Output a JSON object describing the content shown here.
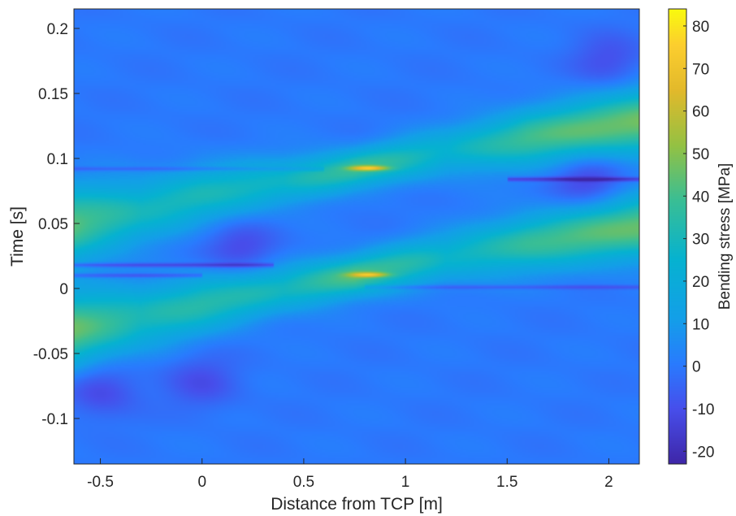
{
  "chart_data": {
    "type": "heatmap",
    "title": "",
    "xlabel": "Distance from TCP [m]",
    "ylabel": "Time [s]",
    "colorbar_label": "Bending stress [MPa]",
    "colormap": "parula",
    "grid": false,
    "xlim": [
      -0.63,
      2.15
    ],
    "ylim": [
      -0.135,
      0.215
    ],
    "clim": [
      -23,
      84
    ],
    "x_ticks": [
      -0.5,
      0,
      0.5,
      1,
      1.5,
      2
    ],
    "x_tick_labels": [
      "-0.5",
      "0",
      "0.5",
      "1",
      "1.5",
      "2"
    ],
    "y_ticks": [
      -0.1,
      -0.05,
      0,
      0.05,
      0.1,
      0.15,
      0.2
    ],
    "y_tick_labels": [
      "-0.1",
      "-0.05",
      "0",
      "0.05",
      "0.1",
      "0.15",
      "0.2"
    ],
    "colorbar_ticks": [
      -20,
      -10,
      0,
      10,
      20,
      30,
      40,
      50,
      60,
      70,
      80
    ],
    "colorbar_tick_labels": [
      "-20",
      "-10",
      "0",
      "10",
      "20",
      "30",
      "40",
      "50",
      "60",
      "70",
      "80"
    ],
    "background_value": 0,
    "bands": [
      {
        "name": "upper wave",
        "points": [
          {
            "x": -0.63,
            "t": 0.049,
            "peak": 44,
            "halfwidth": 0.028
          },
          {
            "x": -0.3,
            "t": 0.06,
            "peak": 30,
            "halfwidth": 0.024
          },
          {
            "x": 0.0,
            "t": 0.072,
            "peak": 30,
            "halfwidth": 0.022
          },
          {
            "x": 0.4,
            "t": 0.082,
            "peak": 28,
            "halfwidth": 0.018
          },
          {
            "x": 0.75,
            "t": 0.092,
            "peak": 40,
            "halfwidth": 0.014
          },
          {
            "x": 1.2,
            "t": 0.105,
            "peak": 25,
            "halfwidth": 0.018
          },
          {
            "x": 1.6,
            "t": 0.116,
            "peak": 40,
            "halfwidth": 0.021
          },
          {
            "x": 2.15,
            "t": 0.128,
            "peak": 48,
            "halfwidth": 0.024
          }
        ]
      },
      {
        "name": "lower wave",
        "points": [
          {
            "x": -0.63,
            "t": -0.032,
            "peak": 46,
            "halfwidth": 0.028
          },
          {
            "x": -0.3,
            "t": -0.022,
            "peak": 32,
            "halfwidth": 0.024
          },
          {
            "x": 0.0,
            "t": -0.012,
            "peak": 34,
            "halfwidth": 0.022
          },
          {
            "x": 0.4,
            "t": 0.0,
            "peak": 30,
            "halfwidth": 0.018
          },
          {
            "x": 0.75,
            "t": 0.01,
            "peak": 44,
            "halfwidth": 0.015
          },
          {
            "x": 1.2,
            "t": 0.024,
            "peak": 26,
            "halfwidth": 0.019
          },
          {
            "x": 1.6,
            "t": 0.035,
            "peak": 38,
            "halfwidth": 0.021
          },
          {
            "x": 2.15,
            "t": 0.047,
            "peak": 46,
            "halfwidth": 0.024
          }
        ]
      }
    ],
    "hotspots": [
      {
        "x": 0.82,
        "t": 0.0925,
        "peak": 80
      },
      {
        "x": 0.82,
        "t": 0.0105,
        "peak": 75
      }
    ],
    "dark_streaks": [
      {
        "t": 0.084,
        "x_from": 1.5,
        "x_to": 2.15,
        "min": -18
      },
      {
        "t": 0.092,
        "x_from": -0.63,
        "x_to": 0.6,
        "min": -10
      },
      {
        "t": 0.018,
        "x_from": -0.63,
        "x_to": 0.35,
        "min": -16
      },
      {
        "t": 0.01,
        "x_from": -0.63,
        "x_to": 0.0,
        "min": -14
      },
      {
        "t": 0.001,
        "x_from": 0.8,
        "x_to": 2.15,
        "min": -10
      }
    ],
    "dark_regions": [
      {
        "x": -0.5,
        "t": -0.078,
        "min": -12
      },
      {
        "x": 0.0,
        "t": -0.072,
        "min": -10
      },
      {
        "x": 0.2,
        "t": 0.03,
        "min": -12
      },
      {
        "x": 1.9,
        "t": 0.083,
        "min": -14
      },
      {
        "x": 2.0,
        "t": 0.175,
        "min": -10
      }
    ]
  }
}
